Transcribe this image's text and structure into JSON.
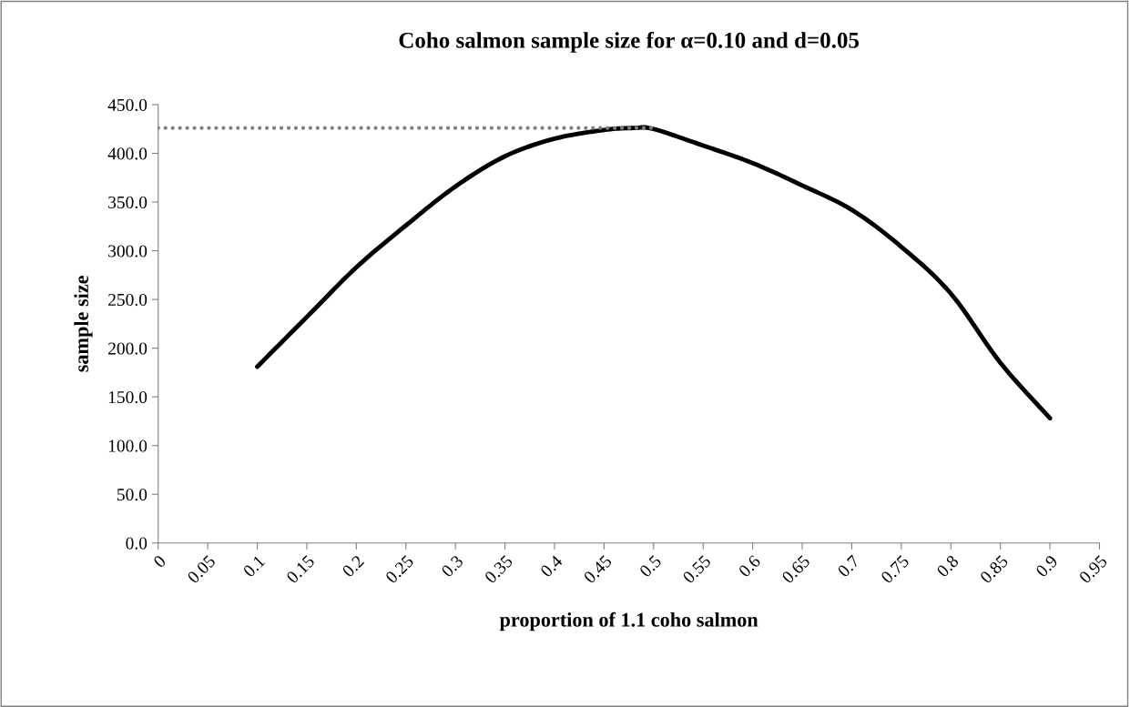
{
  "chart_data": {
    "type": "line",
    "title": "Coho salmon sample size for α=0.10 and d=0.05",
    "xlabel": "proportion of 1.1 coho salmon",
    "ylabel": "sample size",
    "series": [
      {
        "color": "#000000",
        "line_style": "solid",
        "x": [
          0.1,
          0.15,
          0.2,
          0.25,
          0.3,
          0.35,
          0.4,
          0.45,
          0.48,
          0.5,
          0.55,
          0.6,
          0.65,
          0.7,
          0.75,
          0.8,
          0.85,
          0.9
        ],
        "values": [
          181,
          232,
          283,
          326,
          366,
          397,
          415,
          424,
          426,
          425,
          408,
          390,
          367,
          342,
          304,
          256,
          185,
          128
        ]
      },
      {
        "color": "#808080",
        "line_style": "dotted",
        "x": [
          0,
          0.5
        ],
        "values": [
          426,
          426
        ]
      }
    ],
    "xlim": [
      0,
      0.95
    ],
    "xticks": [
      0,
      0.05,
      0.1,
      0.15,
      0.2,
      0.25,
      0.3,
      0.35,
      0.4,
      0.45,
      0.5,
      0.55,
      0.6,
      0.65,
      0.7,
      0.75,
      0.8,
      0.85,
      0.9,
      0.95
    ],
    "ylim": [
      0,
      450
    ],
    "yticks": [
      {
        "value": 0,
        "label": "0.0"
      },
      {
        "value": 50,
        "label": "50.0"
      },
      {
        "value": 100,
        "label": "100.0"
      },
      {
        "value": 150,
        "label": "150.0"
      },
      {
        "value": 200,
        "label": "200.0"
      },
      {
        "value": 250,
        "label": "250.0"
      },
      {
        "value": 300,
        "label": "300.0"
      },
      {
        "value": 350,
        "label": "350.0"
      },
      {
        "value": 400,
        "label": "400.0"
      },
      {
        "value": 450,
        "label": "450.0"
      }
    ],
    "grid": false,
    "marker": "none"
  }
}
